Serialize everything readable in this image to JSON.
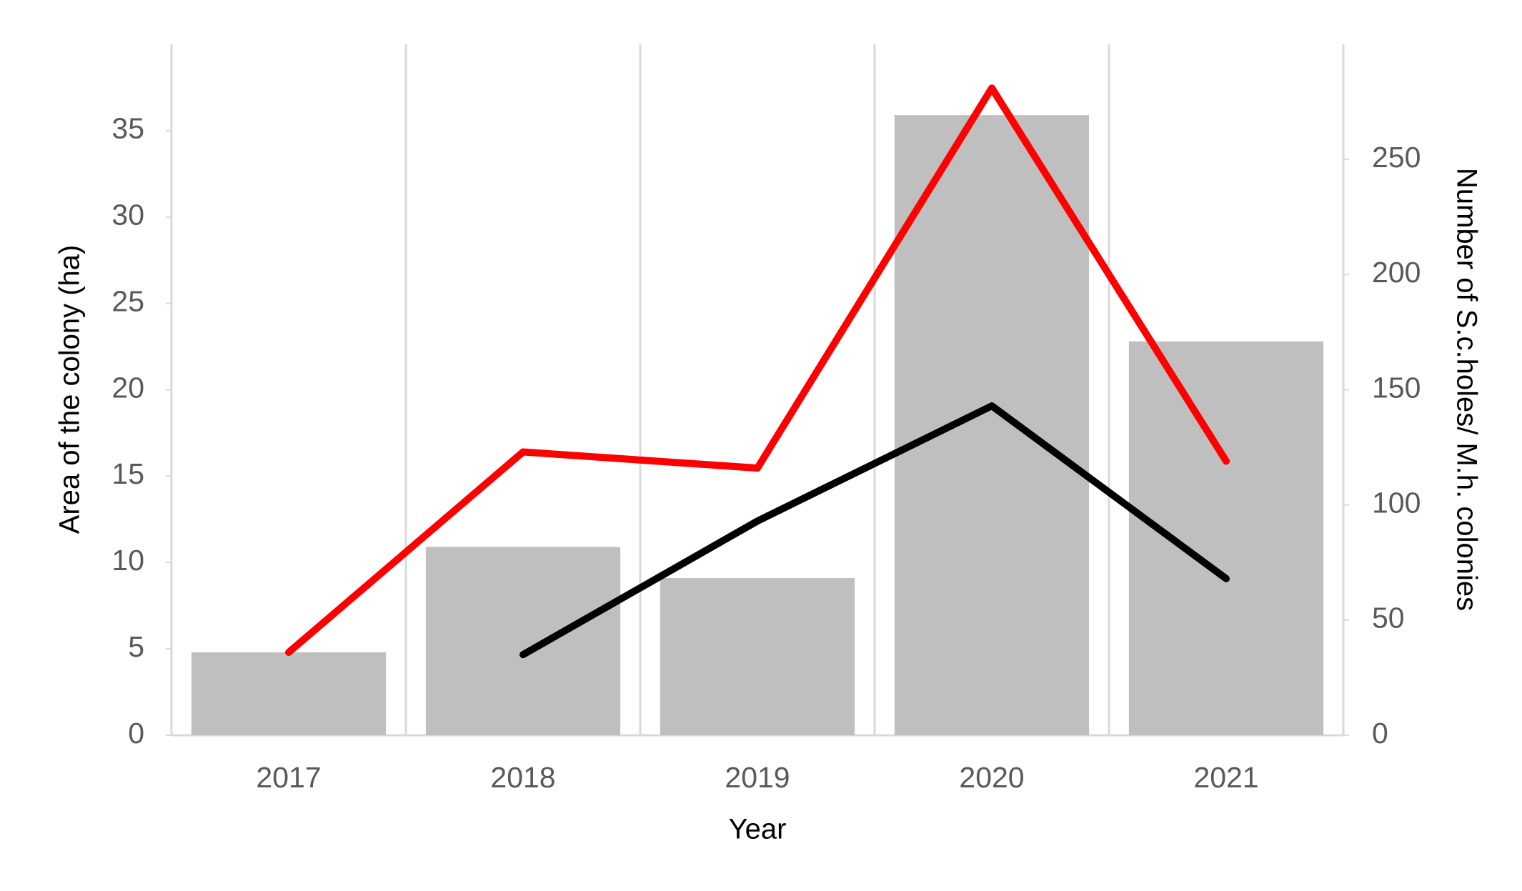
{
  "chart_data": {
    "type": "bar_line",
    "categories": [
      "2017",
      "2018",
      "2019",
      "2020",
      "2021"
    ],
    "x_label": "Year",
    "y_label": "Area of the colony (ha)",
    "y2_label": "Number of S.c.holes/ M.h. colonies",
    "ylim": [
      0,
      40
    ],
    "yticks": [
      0,
      5,
      10,
      15,
      20,
      25,
      30,
      35
    ],
    "y2lim": [
      0,
      300
    ],
    "y2ticks": [
      0,
      50,
      100,
      150,
      200,
      250
    ],
    "series": [
      {
        "type": "bar",
        "color": "#bfbfbf",
        "values": [
          4.8,
          10.9,
          9.1,
          35.9,
          22.8
        ]
      },
      {
        "type": "line",
        "axis": "y2",
        "color": "#ff0000",
        "values": [
          36,
          123,
          116,
          281,
          119
        ]
      },
      {
        "type": "line",
        "axis": "y2",
        "color": "#000000",
        "values": [
          null,
          35,
          93,
          143,
          68
        ]
      }
    ]
  }
}
